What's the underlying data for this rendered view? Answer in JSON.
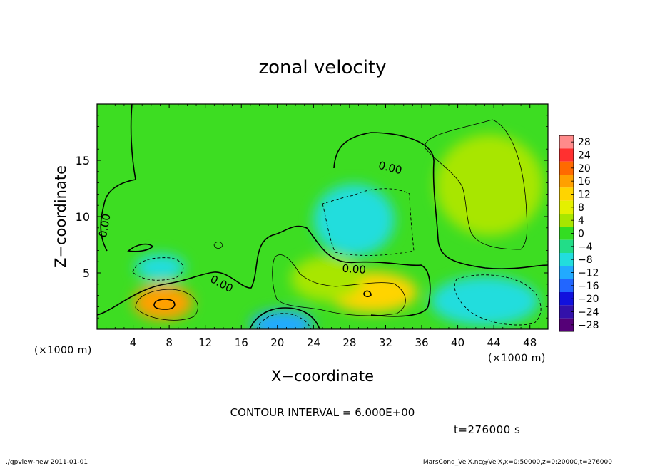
{
  "chart_data": {
    "type": "heatmap",
    "title": "zonal velocity",
    "xlabel": "X−coordinate",
    "ylabel": "Z−coordinate",
    "x_unit_left": "(×1000 m)",
    "x_unit_right": "(×1000 m)",
    "xlim": [
      0,
      50
    ],
    "ylim": [
      0,
      20
    ],
    "x_ticks": [
      4,
      8,
      12,
      16,
      20,
      24,
      28,
      32,
      36,
      40,
      44,
      48
    ],
    "y_ticks": [
      5,
      10,
      15
    ],
    "colorbar_levels": [
      28,
      24,
      20,
      16,
      12,
      8,
      4,
      0,
      -4,
      -8,
      -12,
      -16,
      -20,
      -24,
      -28
    ],
    "colorbar_labels": [
      "28",
      "24",
      "20",
      "16",
      "12",
      "8",
      "4",
      "0",
      "−4",
      "−8",
      "−12",
      "−16",
      "−20",
      "−24",
      "−28"
    ],
    "colorbar_colors": [
      "#ff8a8a",
      "#ff3030",
      "#ff6a00",
      "#ffa000",
      "#ffd400",
      "#e4f000",
      "#a8e600",
      "#33dd22",
      "#22dd88",
      "#22dddd",
      "#22aaff",
      "#2266ff",
      "#1111dd",
      "#3311aa",
      "#550077"
    ],
    "contour_interval": "CONTOUR INTERVAL = 6.000E+00",
    "contour_labels": [
      {
        "text": "0.00",
        "x": 32.5,
        "z": 14.3,
        "rotate": 14
      },
      {
        "text": "0.00",
        "x": 28.5,
        "z": 5.3,
        "rotate": 4
      },
      {
        "text": "0.00",
        "x": 13.8,
        "z": 4.0,
        "rotate": 28
      },
      {
        "text": "0.00",
        "x": 0.9,
        "z": 9.2,
        "rotate": -80
      }
    ],
    "features": [
      {
        "name": "positive-maximum-near-8km",
        "x": 7.3,
        "z": 2.4,
        "rx": 3.3,
        "rz": 1.6,
        "value": 14
      },
      {
        "name": "positive-region-31km",
        "x": 30.5,
        "z": 3.3,
        "rx": 5.0,
        "rz": 1.8,
        "value": 10
      },
      {
        "name": "positive-band-25km",
        "x": 25.5,
        "z": 4.5,
        "rx": 4.0,
        "rz": 2.0,
        "value": 5
      },
      {
        "name": "positive-region-upper-right",
        "x": 43.5,
        "z": 12.8,
        "rx": 6.0,
        "rz": 4.5,
        "value": 5
      },
      {
        "name": "negative-core-28km",
        "x": 28.5,
        "z": 9.7,
        "rx": 4.5,
        "rz": 3.2,
        "value": -9
      },
      {
        "name": "negative-region-lower-right",
        "x": 43.0,
        "z": 2.5,
        "rx": 6.0,
        "rz": 2.2,
        "value": -8
      },
      {
        "name": "negative-core-bottom-20km",
        "x": 20.5,
        "z": 0.4,
        "rx": 3.5,
        "rz": 1.3,
        "value": -12
      },
      {
        "name": "negative-region-7km",
        "x": 7.0,
        "z": 5.5,
        "rx": 2.8,
        "rz": 1.2,
        "value": -9
      }
    ]
  },
  "annotations": {
    "time_label": "t=276000 s",
    "footer_left": "./gpview-new  2011-01-01",
    "footer_right": "MarsCond_VelX.nc@VelX,x=0:50000,z=0:20000,t=276000"
  }
}
